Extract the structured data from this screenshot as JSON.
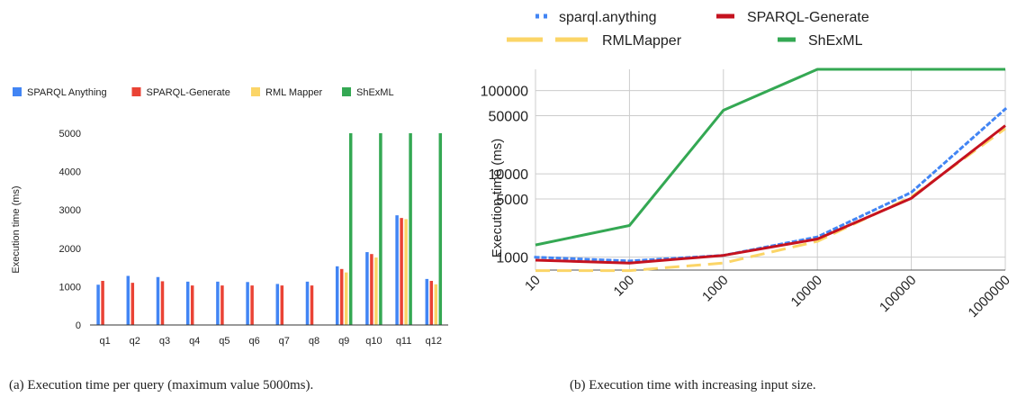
{
  "captions": {
    "a": "(a) Execution time per query (maximum value 5000ms).",
    "b": "(b) Execution time with increasing input size."
  },
  "colors": {
    "blue": "#4285f4",
    "red": "#ea4335",
    "yellow": "#fbd567",
    "green": "#34a853",
    "darkred": "#c5121f",
    "grid": "#cccccc"
  },
  "chart_data": [
    {
      "id": "a",
      "type": "bar",
      "title": "",
      "xlabel": "",
      "ylabel": "Execution time (ms)",
      "ylim": [
        0,
        5000
      ],
      "yticks": [
        0,
        1000,
        2000,
        3000,
        4000,
        5000
      ],
      "grid": false,
      "legend": "top",
      "categories": [
        "q1",
        "q2",
        "q3",
        "q4",
        "q5",
        "q6",
        "q7",
        "q8",
        "q9",
        "q10",
        "q11",
        "q12"
      ],
      "series": [
        {
          "name": "SPARQL Anything",
          "color": "#4285f4",
          "values": [
            1050,
            1280,
            1250,
            1130,
            1130,
            1120,
            1070,
            1130,
            1530,
            1900,
            2860,
            1200
          ]
        },
        {
          "name": "SPARQL-Generate",
          "color": "#ea4335",
          "values": [
            1150,
            1100,
            1140,
            1030,
            1030,
            1030,
            1030,
            1030,
            1460,
            1850,
            2790,
            1150
          ]
        },
        {
          "name": "RML Mapper",
          "color": "#fbd567",
          "values": [
            null,
            null,
            null,
            null,
            null,
            null,
            null,
            null,
            1370,
            1760,
            2760,
            1060
          ]
        },
        {
          "name": "ShExML",
          "color": "#34a853",
          "values": [
            null,
            null,
            null,
            null,
            null,
            null,
            null,
            null,
            5000,
            5000,
            5000,
            5000
          ]
        }
      ]
    },
    {
      "id": "b",
      "type": "line",
      "title": "",
      "xlabel": "",
      "ylabel": "Execution time (ms)",
      "yscale": "log",
      "ylim": [
        700,
        180000
      ],
      "yticks": [
        1000,
        5000,
        10000,
        50000,
        100000
      ],
      "x": [
        "10",
        "100",
        "1000",
        "10000",
        "100000",
        "1000000"
      ],
      "grid": true,
      "legend": "top",
      "series": [
        {
          "name": "sparql.anything",
          "color": "#4285f4",
          "style": "dotted",
          "values": [
            1000,
            900,
            1050,
            1750,
            6000,
            60000
          ]
        },
        {
          "name": "SPARQL-Generate",
          "color": "#c5121f",
          "style": "solid",
          "values": [
            920,
            850,
            1050,
            1650,
            5100,
            38000
          ]
        },
        {
          "name": "RMLMapper",
          "color": "#fbd567",
          "style": "dashed",
          "values": [
            690,
            690,
            850,
            1550,
            5300,
            35000
          ]
        },
        {
          "name": "ShExML",
          "color": "#34a853",
          "style": "solid",
          "values": [
            1400,
            2400,
            58000,
            180000,
            180000,
            180000
          ]
        }
      ]
    }
  ]
}
